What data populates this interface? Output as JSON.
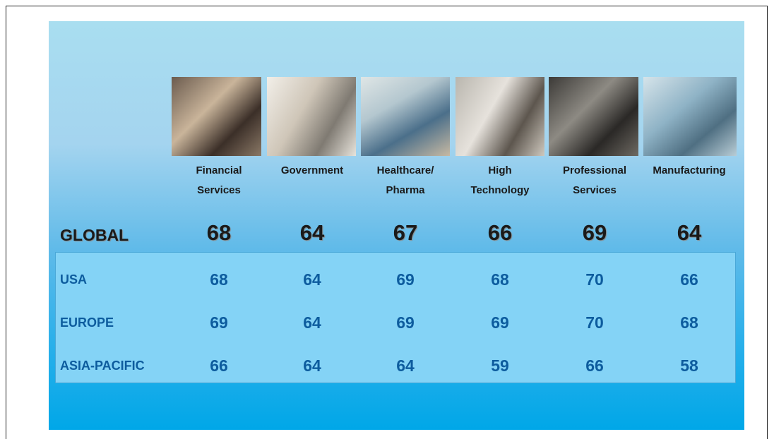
{
  "table": {
    "columns": [
      [
        "Financial",
        "Services"
      ],
      [
        "Government"
      ],
      [
        "Healthcare/",
        "Pharma"
      ],
      [
        "High",
        "Technology"
      ],
      [
        "Professional",
        "Services"
      ],
      [
        "Manufacturing"
      ]
    ],
    "global": {
      "label": "GLOBAL",
      "values": [
        68,
        64,
        67,
        66,
        69,
        64
      ]
    },
    "rows": [
      {
        "label": "USA",
        "values": [
          68,
          64,
          69,
          68,
          70,
          66
        ]
      },
      {
        "label": "EUROPE",
        "values": [
          69,
          64,
          69,
          69,
          70,
          68
        ]
      },
      {
        "label": "ASIA-PACIFIC",
        "values": [
          66,
          64,
          64,
          59,
          66,
          58
        ]
      }
    ]
  }
}
